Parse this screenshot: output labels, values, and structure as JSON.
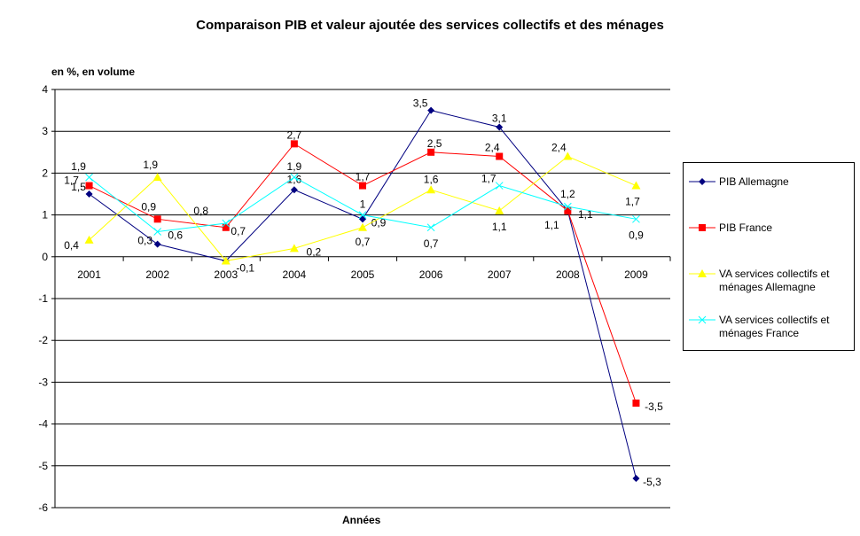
{
  "chart_data": {
    "type": "line",
    "title": "Comparaison PIB et valeur ajoutée des services collectifs et des ménages",
    "ylabel": "en %, en volume",
    "xlabel": "Années",
    "categories": [
      "2001",
      "2002",
      "2003",
      "2004",
      "2005",
      "2006",
      "2007",
      "2008",
      "2009"
    ],
    "ylim": [
      -6,
      4
    ],
    "yticks": [
      "4",
      "3",
      "2",
      "1",
      "0",
      "-1",
      "-2",
      "-3",
      "-4",
      "-5",
      "-6"
    ],
    "grid": true,
    "legend_position": "right",
    "series": [
      {
        "name": "PIB Allemagne",
        "color": "#000080",
        "marker": "diamond",
        "values": [
          1.5,
          0.3,
          -0.1,
          1.6,
          0.9,
          3.5,
          3.1,
          1.1,
          -5.3
        ],
        "labels": [
          "1,5",
          "0,3",
          "",
          "1,6",
          "0,9",
          "3,5",
          "3,1",
          "1,1",
          "-5,3"
        ]
      },
      {
        "name": "PIB France",
        "color": "#ff0000",
        "marker": "square",
        "values": [
          1.7,
          0.9,
          0.7,
          2.7,
          1.7,
          2.5,
          2.4,
          1.1,
          -3.5
        ],
        "labels": [
          "1,7",
          "0,9",
          "0,7",
          "2,7",
          "1,7",
          "2,5",
          "2,4",
          "1,1",
          "-3,5"
        ]
      },
      {
        "name": "VA services collectifs et ménages Allemagne",
        "color": "#ffff00",
        "marker": "triangle",
        "values": [
          0.4,
          1.9,
          -0.1,
          0.2,
          0.7,
          1.6,
          1.1,
          2.4,
          1.7
        ],
        "labels": [
          "0,4",
          "1,9",
          "-0,1",
          "0,2",
          "0,7",
          "1,6",
          "1,1",
          "2,4",
          "1,7"
        ]
      },
      {
        "name": "VA services collectifs et ménages France",
        "color": "#00ffff",
        "marker": "x",
        "values": [
          1.9,
          0.6,
          0.8,
          1.9,
          1.0,
          0.7,
          1.7,
          1.2,
          0.9
        ],
        "labels": [
          "1,9",
          "0,6",
          "0,8",
          "1,9",
          "1",
          "0,7",
          "1,7",
          "1,2",
          "0,9"
        ]
      }
    ]
  }
}
